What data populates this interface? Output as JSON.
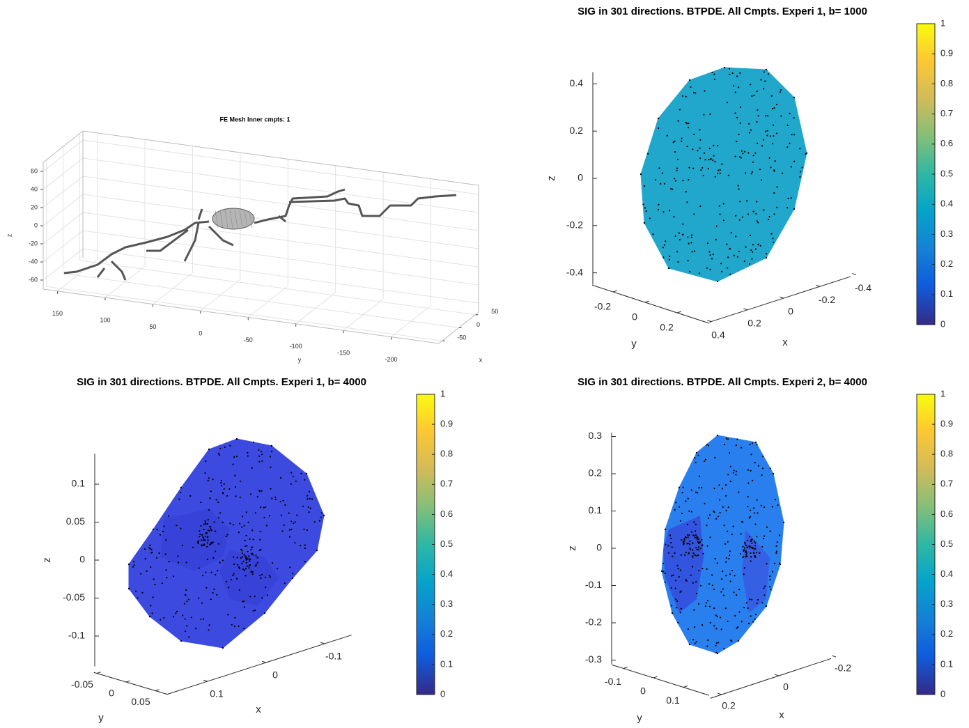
{
  "chart_data": [
    {
      "type": "mesh3d",
      "title": "FE Mesh Inner cmpts: 1",
      "xlabel": "x",
      "ylabel": "y",
      "zlabel": "z",
      "xlim": [
        -60,
        60
      ],
      "xticks": [
        50,
        0,
        -50
      ],
      "ylim": [
        -250,
        165
      ],
      "yticks": [
        150,
        100,
        50,
        0,
        -50,
        -100,
        -150,
        -200
      ],
      "zlim": [
        -70,
        70
      ],
      "zticks": [
        60,
        40,
        20,
        0,
        -20,
        -40,
        -60
      ],
      "grid": true,
      "mesh_color": "#555555"
    },
    {
      "type": "surface3d",
      "title": "SIG in 301 directions. BTPDE. All Cmpts. Experi 1, b= 1000",
      "xlabel": "x",
      "ylabel": "y",
      "zlabel": "z",
      "xlim": [
        -0.37,
        0.41
      ],
      "xticks": [
        -0.4,
        -0.2,
        0,
        0.2,
        0.4
      ],
      "ylim": [
        -0.33,
        0.4
      ],
      "yticks": [
        -0.2,
        0,
        0.2
      ],
      "zlim": [
        -0.45,
        0.45
      ],
      "zticks": [
        0.4,
        0.2,
        0,
        -0.2,
        -0.4
      ],
      "surface_color": "#21a6cc",
      "clim": [
        0,
        1
      ],
      "cticks": [
        0,
        0.1,
        0.2,
        0.3,
        0.4,
        0.5,
        0.6,
        0.7,
        0.8,
        0.9,
        1
      ]
    },
    {
      "type": "surface3d",
      "title": "SIG in 301 directions. BTPDE. All Cmpts. Experi 1, b= 4000",
      "xlabel": "x",
      "ylabel": "y",
      "zlabel": "z",
      "xlim": [
        -0.146,
        0.17
      ],
      "xticks": [
        -0.1,
        0,
        0.1
      ],
      "ylim": [
        -0.055,
        0.07
      ],
      "yticks": [
        -0.05,
        0,
        0.05
      ],
      "zlim": [
        -0.14,
        0.14
      ],
      "zticks": [
        0.1,
        0.05,
        0,
        -0.05,
        -0.1
      ],
      "surface_color": "#3c4ae0",
      "clim": [
        0,
        1
      ],
      "cticks": [
        0,
        0.1,
        0.2,
        0.3,
        0.4,
        0.5,
        0.6,
        0.7,
        0.8,
        0.9,
        1
      ]
    },
    {
      "type": "surface3d",
      "title": "SIG in 301 directions. BTPDE. All Cmpts. Experi 2, b= 4000",
      "xlabel": "x",
      "ylabel": "y",
      "zlabel": "z",
      "xlim": [
        -0.183,
        0.24
      ],
      "xticks": [
        -0.2,
        0,
        0.2
      ],
      "ylim": [
        -0.14,
        0.186
      ],
      "yticks": [
        -0.1,
        0,
        0.1
      ],
      "zlim": [
        -0.31,
        0.31
      ],
      "zticks": [
        0.3,
        0.2,
        0.1,
        0,
        -0.1,
        -0.2,
        -0.3
      ],
      "surface_color": "#2a7fee",
      "clim": [
        0,
        1
      ],
      "cticks": [
        0,
        0.1,
        0.2,
        0.3,
        0.4,
        0.5,
        0.6,
        0.7,
        0.8,
        0.9,
        1
      ]
    }
  ]
}
